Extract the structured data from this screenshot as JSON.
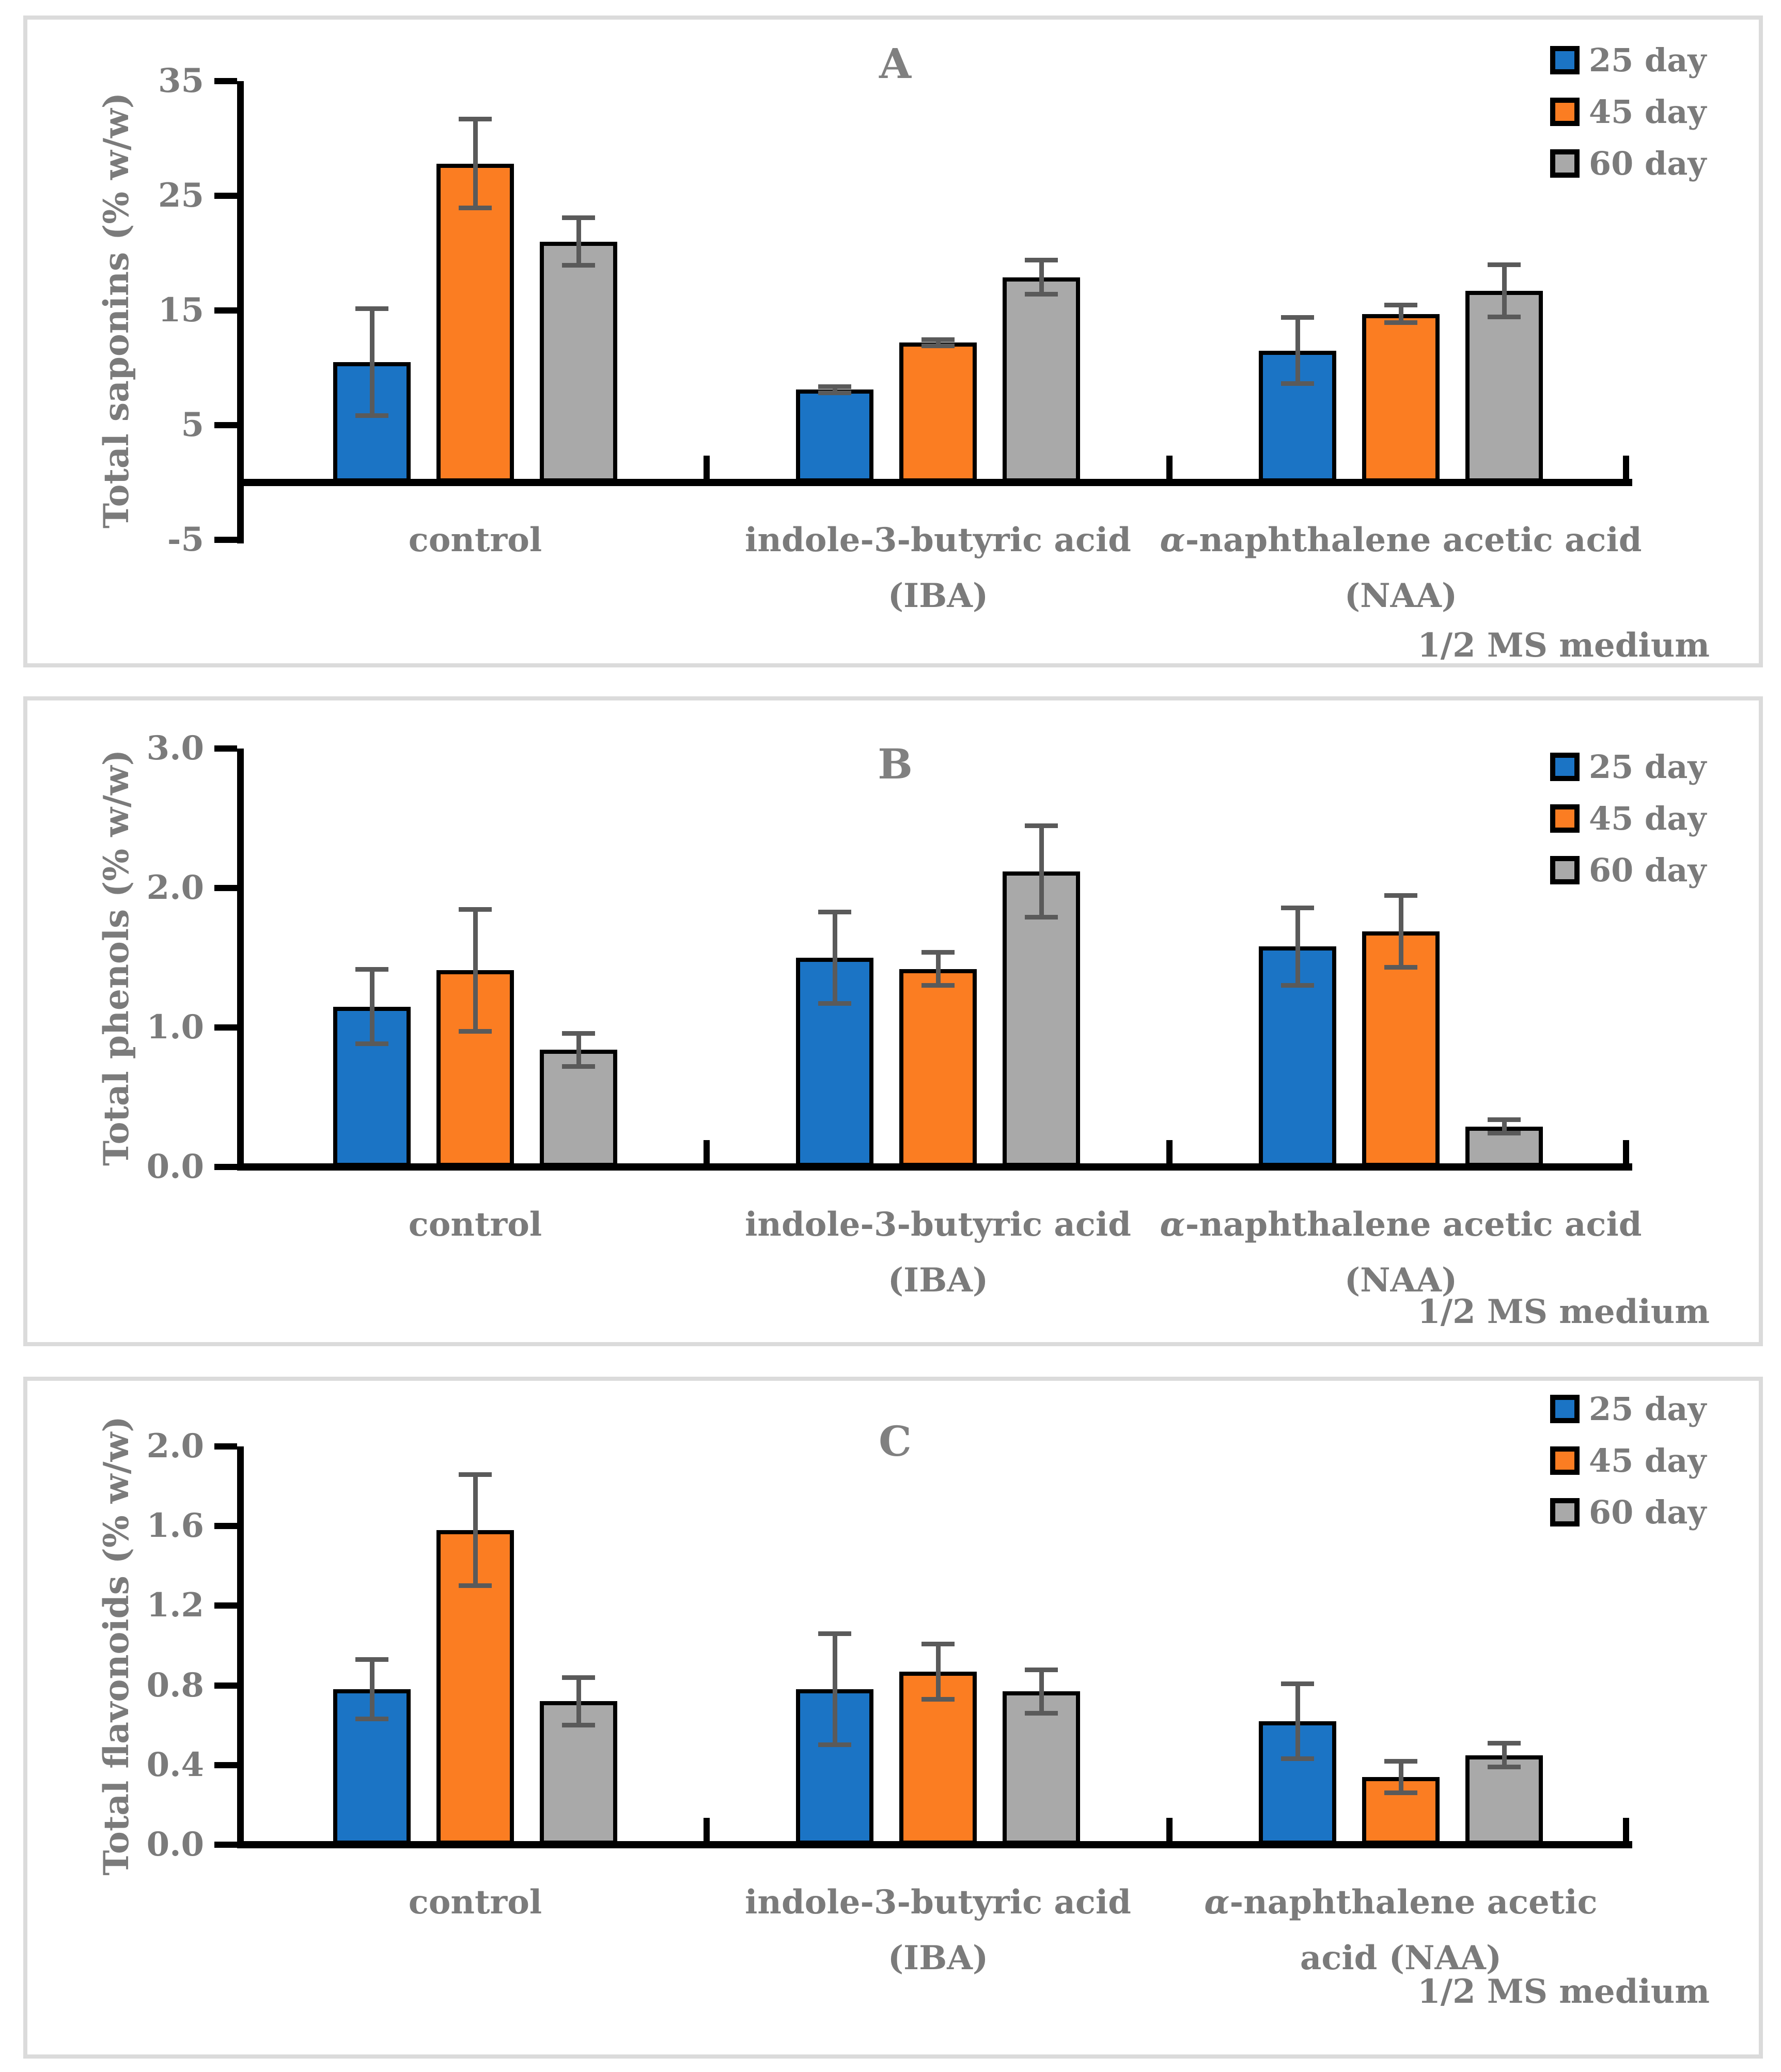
{
  "chart_data": [
    {
      "panel": "A",
      "type": "bar",
      "ylabel": "Total saponins (% w/w)",
      "note": "1/2 MS medium",
      "ylim": [
        -5,
        35
      ],
      "grid": false,
      "legend_position": "top-right",
      "yticks": [
        {
          "label": "35",
          "value": 35
        },
        {
          "label": "25",
          "value": 25
        },
        {
          "label": "15",
          "value": 15
        },
        {
          "label": "5",
          "value": 5
        },
        {
          "label": "-5",
          "value": -5
        }
      ],
      "categories": [
        {
          "lines": [
            "control"
          ]
        },
        {
          "lines": [
            "indole-3-butyric acid",
            "(IBA)"
          ]
        },
        {
          "lines": [
            "α-naphthalene acetic acid",
            "(NAA)"
          ]
        }
      ],
      "series": [
        {
          "name": "25 day",
          "color": "#1B74C5",
          "values": [
            10.5,
            8.1,
            11.5
          ],
          "errors": [
            4.7,
            0.3,
            2.9
          ]
        },
        {
          "name": "45 day",
          "color": "#FB7D22",
          "values": [
            27.8,
            12.2,
            14.7
          ],
          "errors": [
            3.9,
            0.3,
            0.8
          ]
        },
        {
          "name": "60 day",
          "color": "#A9A9A9",
          "values": [
            21.0,
            17.9,
            16.7
          ],
          "errors": [
            2.1,
            1.5,
            2.3
          ]
        }
      ],
      "error_bar_color": "#5A5A5A",
      "text_color": "#7B7B7B"
    },
    {
      "panel": "B",
      "type": "bar",
      "ylabel": "Total phenols (% w/w)",
      "note": "1/2 MS medium",
      "ylim": [
        0,
        3.0
      ],
      "grid": false,
      "legend_position": "top-right",
      "yticks": [
        {
          "label": "3.0",
          "value": 3.0
        },
        {
          "label": "2.0",
          "value": 2.0
        },
        {
          "label": "1.0",
          "value": 1.0
        },
        {
          "label": "0.0",
          "value": 0.0
        }
      ],
      "categories": [
        {
          "lines": [
            "control"
          ]
        },
        {
          "lines": [
            "indole-3-butyric acid",
            "(IBA)"
          ]
        },
        {
          "lines": [
            "α-naphthalene acetic acid",
            "(NAA)"
          ]
        }
      ],
      "series": [
        {
          "name": "25 day",
          "color": "#1B74C5",
          "values": [
            1.15,
            1.5,
            1.58
          ],
          "errors": [
            0.27,
            0.33,
            0.28
          ]
        },
        {
          "name": "45 day",
          "color": "#FB7D22",
          "values": [
            1.41,
            1.42,
            1.69
          ],
          "errors": [
            0.44,
            0.12,
            0.26
          ]
        },
        {
          "name": "60 day",
          "color": "#A9A9A9",
          "values": [
            0.84,
            2.12,
            0.29
          ],
          "errors": [
            0.12,
            0.33,
            0.05
          ]
        }
      ],
      "error_bar_color": "#5A5A5A",
      "text_color": "#7B7B7B"
    },
    {
      "panel": "C",
      "type": "bar",
      "ylabel": "Total flavonoids (% w/w)",
      "note": "1/2 MS medium",
      "ylim": [
        0,
        2.0
      ],
      "grid": false,
      "legend_position": "top-right",
      "yticks": [
        {
          "label": "2.0",
          "value": 2.0
        },
        {
          "label": "1.6",
          "value": 1.6
        },
        {
          "label": "1.2",
          "value": 1.2
        },
        {
          "label": "0.8",
          "value": 0.8
        },
        {
          "label": "0.4",
          "value": 0.4
        },
        {
          "label": "0.0",
          "value": 0.0
        }
      ],
      "categories": [
        {
          "lines": [
            "control"
          ]
        },
        {
          "lines": [
            "indole-3-butyric acid",
            "(IBA)"
          ]
        },
        {
          "lines": [
            "α-naphthalene acetic",
            "acid (NAA)"
          ]
        }
      ],
      "series": [
        {
          "name": "25 day",
          "color": "#1B74C5",
          "values": [
            0.78,
            0.78,
            0.62
          ],
          "errors": [
            0.15,
            0.28,
            0.19
          ]
        },
        {
          "name": "45 day",
          "color": "#FB7D22",
          "values": [
            1.58,
            0.87,
            0.34
          ],
          "errors": [
            0.28,
            0.14,
            0.08
          ]
        },
        {
          "name": "60 day",
          "color": "#A9A9A9",
          "values": [
            0.72,
            0.77,
            0.45
          ],
          "errors": [
            0.12,
            0.11,
            0.06
          ]
        }
      ],
      "error_bar_color": "#5A5A5A",
      "text_color": "#7B7B7B"
    }
  ]
}
